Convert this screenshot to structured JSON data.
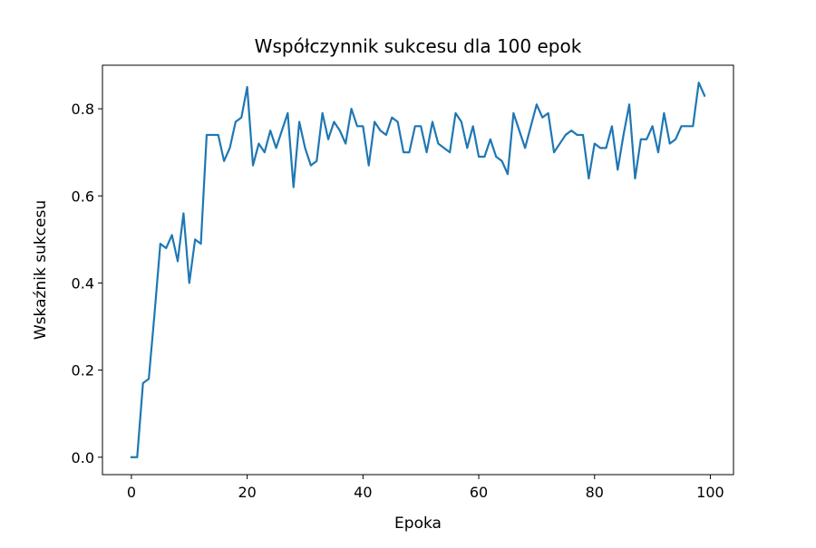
{
  "chart_data": {
    "type": "line",
    "title": "Współczynnik sukcesu dla 100 epok",
    "xlabel": "Epoka",
    "ylabel": "Wskaźnik sukcesu",
    "xlim": [
      -5,
      104
    ],
    "ylim": [
      -0.04,
      0.9
    ],
    "xticks": [
      0,
      20,
      40,
      60,
      80,
      100
    ],
    "yticks": [
      0.0,
      0.2,
      0.4,
      0.6,
      0.8
    ],
    "xtick_labels": [
      "0",
      "20",
      "40",
      "60",
      "80",
      "100"
    ],
    "ytick_labels": [
      "0.0",
      "0.2",
      "0.4",
      "0.6",
      "0.8"
    ],
    "grid": false,
    "legend": "none",
    "series": [
      {
        "color": "#1f77b4",
        "x": [
          0,
          1,
          2,
          3,
          4,
          5,
          6,
          7,
          8,
          9,
          10,
          11,
          12,
          13,
          14,
          15,
          16,
          17,
          18,
          19,
          20,
          21,
          22,
          23,
          24,
          25,
          26,
          27,
          28,
          29,
          30,
          31,
          32,
          33,
          34,
          35,
          36,
          37,
          38,
          39,
          40,
          41,
          42,
          43,
          44,
          45,
          46,
          47,
          48,
          49,
          50,
          51,
          52,
          53,
          54,
          55,
          56,
          57,
          58,
          59,
          60,
          61,
          62,
          63,
          64,
          65,
          66,
          67,
          68,
          69,
          70,
          71,
          72,
          73,
          74,
          75,
          76,
          77,
          78,
          79,
          80,
          81,
          82,
          83,
          84,
          85,
          86,
          87,
          88,
          89,
          90,
          91,
          92,
          93,
          94,
          95,
          96,
          97,
          98,
          99
        ],
        "values": [
          0.0,
          0.0,
          0.17,
          0.18,
          0.33,
          0.49,
          0.48,
          0.51,
          0.45,
          0.56,
          0.4,
          0.5,
          0.49,
          0.74,
          0.74,
          0.74,
          0.68,
          0.71,
          0.77,
          0.78,
          0.85,
          0.67,
          0.72,
          0.7,
          0.75,
          0.71,
          0.75,
          0.79,
          0.62,
          0.77,
          0.71,
          0.67,
          0.68,
          0.79,
          0.73,
          0.77,
          0.75,
          0.72,
          0.8,
          0.76,
          0.76,
          0.67,
          0.77,
          0.75,
          0.74,
          0.78,
          0.77,
          0.7,
          0.7,
          0.76,
          0.76,
          0.7,
          0.77,
          0.72,
          0.71,
          0.7,
          0.79,
          0.77,
          0.71,
          0.76,
          0.69,
          0.69,
          0.73,
          0.69,
          0.68,
          0.65,
          0.79,
          0.75,
          0.71,
          0.76,
          0.81,
          0.78,
          0.79,
          0.7,
          0.72,
          0.74,
          0.75,
          0.74,
          0.74,
          0.64,
          0.72,
          0.71,
          0.71,
          0.76,
          0.66,
          0.74,
          0.81,
          0.64,
          0.73,
          0.73,
          0.76,
          0.7,
          0.79,
          0.72,
          0.73,
          0.76,
          0.76,
          0.76,
          0.86,
          0.83
        ]
      }
    ]
  }
}
